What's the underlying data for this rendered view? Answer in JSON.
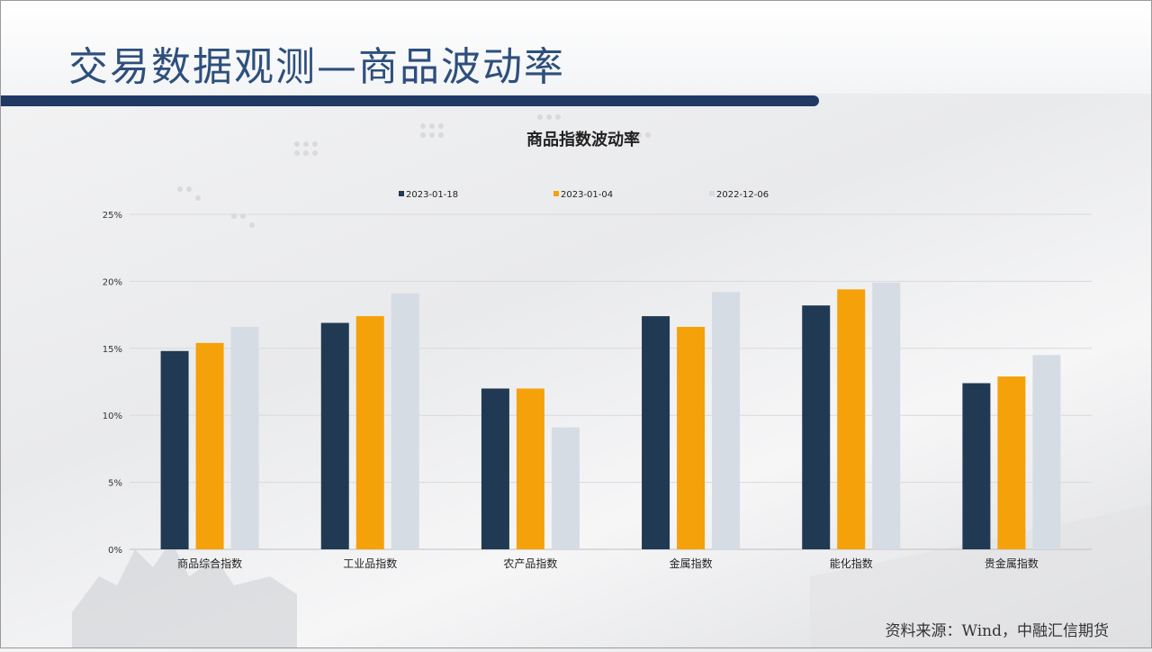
{
  "page": {
    "title": "交易数据观测—商品波动率",
    "source": "资料来源：Wind，中融汇信期货"
  },
  "colors": {
    "series1": "#213a53",
    "series2": "#f5a10a",
    "series3": "#d6dce4",
    "title_bar": "#1f3864",
    "title_text": "#2e4f7c"
  },
  "chart_data": {
    "type": "bar",
    "title": "商品指数波动率",
    "categories": [
      "商品综合指数",
      "工业品指数",
      "农产品指数",
      "金属指数",
      "能化指数",
      "贵金属指数"
    ],
    "series": [
      {
        "name": "2023-01-18",
        "values": [
          14.8,
          16.9,
          12.0,
          17.4,
          18.2,
          12.4
        ]
      },
      {
        "name": "2023-01-04",
        "values": [
          15.4,
          17.4,
          12.0,
          16.6,
          19.4,
          12.9
        ]
      },
      {
        "name": "2022-12-06",
        "values": [
          16.6,
          19.1,
          9.1,
          19.2,
          19.9,
          14.5
        ]
      }
    ],
    "y_ticks": [
      "0%",
      "5%",
      "10%",
      "15%",
      "20%",
      "25%"
    ],
    "ylim": [
      0,
      25
    ],
    "unit": "%",
    "grid": true,
    "legend_position": "top"
  }
}
